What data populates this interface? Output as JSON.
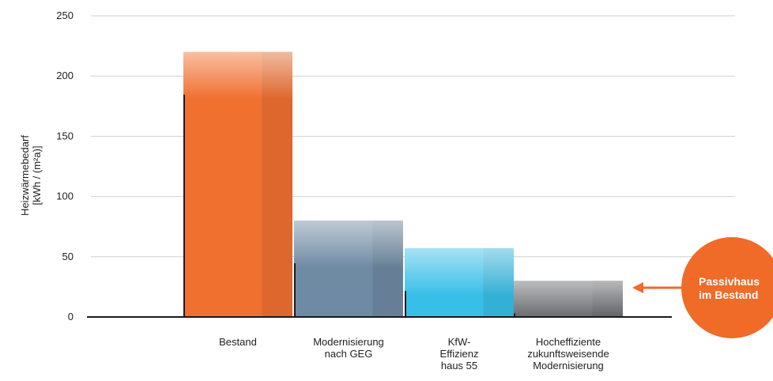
{
  "chart_data": {
    "type": "bar",
    "title": "",
    "ylabel_lines": [
      "Heizwärmebedarf",
      "[kWh / (m²a)]"
    ],
    "ylim": [
      0,
      250
    ],
    "yticks": [
      0,
      50,
      100,
      150,
      200,
      250
    ],
    "grid": true,
    "categories": [
      [
        "Bestand"
      ],
      [
        "Modernisierung",
        "nach GEG"
      ],
      [
        "KfW-",
        "Effizienz",
        "haus 55"
      ],
      [
        "Hocheffiziente",
        "zukunftsweisende",
        "Modernisierung"
      ]
    ],
    "values": [
      220,
      80,
      57,
      30
    ],
    "colors": [
      "#f07030",
      "#6f8aa3",
      "#38bfe8",
      "#6a6c70"
    ],
    "annotation": {
      "lines": [
        "Passivhaus",
        "im Bestand"
      ],
      "color": "#f06a28"
    }
  }
}
